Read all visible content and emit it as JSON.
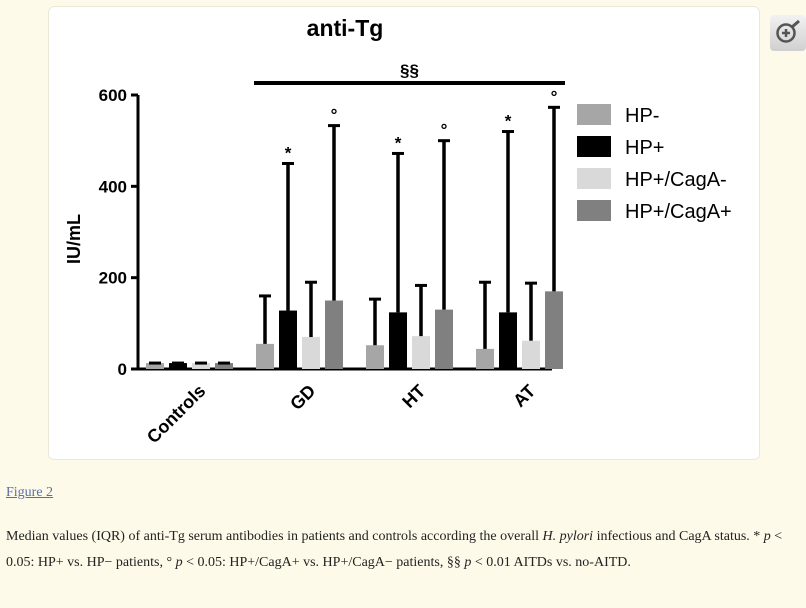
{
  "figure_link": "Figure 2",
  "caption": {
    "t1": "Median values (IQR) of anti-Tg serum antibodies in patients and controls according the overall ",
    "i1": "H. pylori",
    "t2": " infectious and CagA status. * ",
    "p1": "p",
    "t3": " < 0.05: HP+ vs. HP− patients, ° ",
    "p2": "p",
    "t4": " < 0.05: HP+/CagA+ vs. HP+/CagA− patients, §§ ",
    "p3": "p",
    "t5": " < 0.01 AITDs vs. no-AITD."
  },
  "icons": {
    "zoom": "zoom-in-icon"
  },
  "colors": {
    "hp_neg": "#a6a6a6",
    "hp_pos": "#000000",
    "cag_neg": "#d9d9d9",
    "cag_pos": "#808080"
  },
  "chart_data": {
    "type": "bar",
    "title": "anti-Tg",
    "ylabel": "IU/mL",
    "ylim": [
      0,
      600
    ],
    "yticks": [
      0,
      200,
      400,
      600
    ],
    "categories": [
      "Controls",
      "GD",
      "HT",
      "AT"
    ],
    "legend_position": "right",
    "bracket": {
      "label": "§§",
      "from": "GD",
      "to": "AT"
    },
    "series": [
      {
        "name": "HP-",
        "color": "#a6a6a6",
        "values": [
          13,
          55,
          52,
          44
        ],
        "upper": [
          13,
          160,
          153,
          190
        ],
        "marks": [
          "",
          "",
          "",
          ""
        ]
      },
      {
        "name": "HP+",
        "color": "#000000",
        "values": [
          13,
          128,
          124,
          124
        ],
        "upper": [
          13,
          450,
          472,
          520
        ],
        "marks": [
          "",
          "*",
          "*",
          "*"
        ]
      },
      {
        "name": "HP+/CagA-",
        "color": "#d9d9d9",
        "values": [
          13,
          70,
          72,
          62
        ],
        "upper": [
          13,
          190,
          183,
          188
        ],
        "marks": [
          "",
          "",
          "",
          ""
        ]
      },
      {
        "name": "HP+/CagA+",
        "color": "#808080",
        "values": [
          13,
          150,
          130,
          170
        ],
        "upper": [
          13,
          533,
          500,
          573
        ],
        "marks": [
          "",
          "°",
          "°",
          "°"
        ]
      }
    ]
  }
}
